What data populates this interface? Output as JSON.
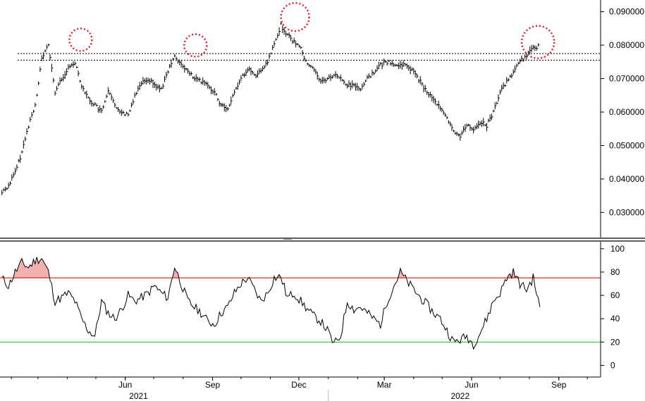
{
  "chart_data": [
    {
      "type": "ohlc",
      "panel": "price",
      "y_ticks": [
        "0.090000",
        "0.080000",
        "0.070000",
        "0.060000",
        "0.050000",
        "0.040000",
        "0.030000"
      ],
      "y_tick_values": [
        0.09,
        0.08,
        0.07,
        0.06,
        0.05,
        0.04,
        0.03
      ],
      "ylim": [
        0.0225,
        0.0935
      ],
      "resistance_levels": [
        0.0775,
        0.0755
      ],
      "circled_peaks": [
        {
          "date": "2021-04-15",
          "value": 0.0812
        },
        {
          "date": "2021-08-14",
          "value": 0.0795
        },
        {
          "date": "2021-11-27",
          "value": 0.088
        },
        {
          "date": "2022-08-10",
          "value": 0.0805
        }
      ],
      "series": [
        {
          "x": [
            "2021-01-22",
            "2021-01-29",
            "2021-02-05",
            "2021-02-12",
            "2021-02-19",
            "2021-02-26",
            "2021-03-05",
            "2021-03-12",
            "2021-03-19",
            "2021-03-26",
            "2021-04-02",
            "2021-04-09",
            "2021-04-16",
            "2021-04-23",
            "2021-04-30",
            "2021-05-07",
            "2021-05-14",
            "2021-05-21",
            "2021-05-28",
            "2021-06-04",
            "2021-06-11",
            "2021-06-18",
            "2021-06-25",
            "2021-07-02",
            "2021-07-09",
            "2021-07-16",
            "2021-07-23",
            "2021-07-30",
            "2021-08-06",
            "2021-08-13",
            "2021-08-20",
            "2021-08-27",
            "2021-09-03",
            "2021-09-10",
            "2021-09-17",
            "2021-09-24",
            "2021-10-01",
            "2021-10-08",
            "2021-10-15",
            "2021-10-22",
            "2021-10-29",
            "2021-11-05",
            "2021-11-12",
            "2021-11-19",
            "2021-11-26",
            "2021-12-03",
            "2021-12-10",
            "2021-12-17",
            "2021-12-24",
            "2021-12-31",
            "2022-01-07",
            "2022-01-14",
            "2022-01-21",
            "2022-01-28",
            "2022-02-04",
            "2022-02-11",
            "2022-02-18",
            "2022-02-25",
            "2022-03-04",
            "2022-03-11",
            "2022-03-18",
            "2022-03-25",
            "2022-04-01",
            "2022-04-08",
            "2022-04-15",
            "2022-04-22",
            "2022-04-29",
            "2022-05-06",
            "2022-05-13",
            "2022-05-20",
            "2022-05-27",
            "2022-06-03",
            "2022-06-10",
            "2022-06-17",
            "2022-06-24",
            "2022-07-01",
            "2022-07-08",
            "2022-07-15",
            "2022-07-22",
            "2022-07-29",
            "2022-08-05",
            "2022-08-12"
          ],
          "values": [
            0.036,
            0.038,
            0.042,
            0.048,
            0.056,
            0.062,
            0.076,
            0.08,
            0.066,
            0.07,
            0.073,
            0.075,
            0.068,
            0.064,
            0.062,
            0.06,
            0.066,
            0.062,
            0.06,
            0.059,
            0.065,
            0.069,
            0.07,
            0.068,
            0.067,
            0.072,
            0.077,
            0.074,
            0.072,
            0.07,
            0.069,
            0.068,
            0.066,
            0.062,
            0.061,
            0.066,
            0.07,
            0.073,
            0.071,
            0.072,
            0.075,
            0.08,
            0.086,
            0.083,
            0.081,
            0.079,
            0.074,
            0.073,
            0.069,
            0.07,
            0.071,
            0.07,
            0.068,
            0.068,
            0.067,
            0.07,
            0.072,
            0.074,
            0.075,
            0.074,
            0.074,
            0.074,
            0.072,
            0.069,
            0.066,
            0.064,
            0.061,
            0.058,
            0.054,
            0.053,
            0.056,
            0.055,
            0.057,
            0.056,
            0.06,
            0.066,
            0.069,
            0.072,
            0.075,
            0.077,
            0.079,
            0.08
          ]
        }
      ]
    },
    {
      "type": "line",
      "panel": "oscillator",
      "y_ticks": [
        "100",
        "80",
        "60",
        "40",
        "20",
        "0"
      ],
      "y_tick_values": [
        100,
        80,
        60,
        40,
        20,
        0
      ],
      "ylim": [
        -10,
        106
      ],
      "overbought": 75,
      "oversold": 20,
      "colors": {
        "overbought_line": "#cc0000",
        "oversold_line": "#22bb22",
        "overbought_fill": "#f4b0b0"
      },
      "series": [
        {
          "x": [
            "2021-01-22",
            "2021-01-29",
            "2021-02-05",
            "2021-02-12",
            "2021-02-19",
            "2021-02-26",
            "2021-03-05",
            "2021-03-12",
            "2021-03-19",
            "2021-03-26",
            "2021-04-02",
            "2021-04-09",
            "2021-04-16",
            "2021-04-23",
            "2021-04-30",
            "2021-05-07",
            "2021-05-14",
            "2021-05-21",
            "2021-05-28",
            "2021-06-04",
            "2021-06-11",
            "2021-06-18",
            "2021-06-25",
            "2021-07-02",
            "2021-07-09",
            "2021-07-16",
            "2021-07-23",
            "2021-07-30",
            "2021-08-06",
            "2021-08-13",
            "2021-08-20",
            "2021-08-27",
            "2021-09-03",
            "2021-09-10",
            "2021-09-17",
            "2021-09-24",
            "2021-10-01",
            "2021-10-08",
            "2021-10-15",
            "2021-10-22",
            "2021-10-29",
            "2021-11-05",
            "2021-11-12",
            "2021-11-19",
            "2021-11-26",
            "2021-12-03",
            "2021-12-10",
            "2021-12-17",
            "2021-12-24",
            "2021-12-31",
            "2022-01-07",
            "2022-01-14",
            "2022-01-21",
            "2022-01-28",
            "2022-02-04",
            "2022-02-11",
            "2022-02-18",
            "2022-02-25",
            "2022-03-04",
            "2022-03-11",
            "2022-03-18",
            "2022-03-25",
            "2022-04-01",
            "2022-04-08",
            "2022-04-15",
            "2022-04-22",
            "2022-04-29",
            "2022-05-06",
            "2022-05-13",
            "2022-05-20",
            "2022-05-27",
            "2022-06-03",
            "2022-06-10",
            "2022-06-17",
            "2022-06-24",
            "2022-07-01",
            "2022-07-08",
            "2022-07-15",
            "2022-07-22",
            "2022-07-29",
            "2022-08-05",
            "2022-08-12"
          ],
          "values": [
            75,
            68,
            80,
            88,
            84,
            90,
            92,
            80,
            55,
            58,
            62,
            55,
            40,
            30,
            25,
            55,
            45,
            40,
            48,
            60,
            55,
            58,
            62,
            68,
            62,
            58,
            85,
            70,
            55,
            50,
            45,
            38,
            35,
            45,
            50,
            62,
            70,
            75,
            65,
            55,
            62,
            75,
            76,
            58,
            62,
            55,
            48,
            42,
            38,
            30,
            18,
            25,
            55,
            48,
            50,
            45,
            40,
            35,
            55,
            68,
            80,
            72,
            65,
            58,
            52,
            45,
            40,
            30,
            20,
            22,
            25,
            18,
            28,
            40,
            55,
            62,
            75,
            80,
            70,
            65,
            75,
            50
          ]
        }
      ]
    }
  ],
  "x_axis": {
    "ticks": [
      {
        "label": "Jun",
        "date": "2021-06-01"
      },
      {
        "label": "Sep",
        "date": "2021-09-01"
      },
      {
        "label": "Dec",
        "date": "2021-12-01"
      },
      {
        "label": "Mar",
        "date": "2022-03-01"
      },
      {
        "label": "Jun",
        "date": "2022-06-01"
      },
      {
        "label": "Sep",
        "date": "2022-09-01"
      }
    ],
    "years": [
      {
        "label": "2021",
        "date": "2021-06-15"
      },
      {
        "label": "2022",
        "date": "2022-05-20"
      }
    ],
    "xlim": [
      "2021-01-20",
      "2022-10-15"
    ]
  }
}
